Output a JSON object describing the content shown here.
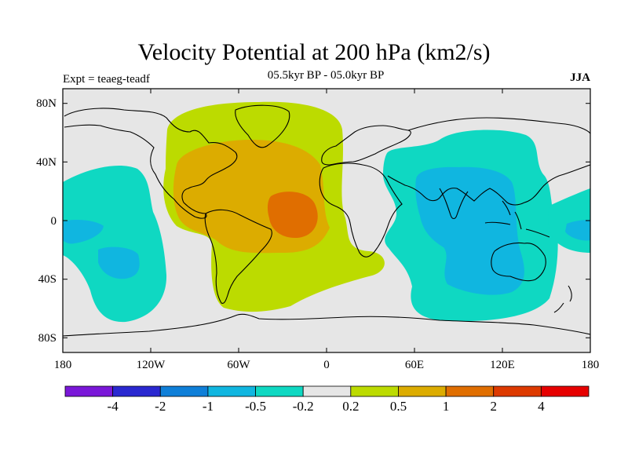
{
  "title": "Velocity Potential at 200 hPa (km2/s)",
  "subtitle": "05.5kyr BP - 05.0kyr BP",
  "experiment": "Expt = teaeg-teadf",
  "season": "JJA",
  "y_ticks": [
    "80N",
    "40N",
    "0",
    "40S",
    "80S"
  ],
  "x_ticks": [
    "180",
    "120W",
    "60W",
    "0",
    "60E",
    "120E",
    "180"
  ],
  "colorbar": {
    "labels": [
      "-4",
      "-2",
      "-1",
      "-0.5",
      "-0.2",
      "0.2",
      "0.5",
      "1",
      "2",
      "4"
    ],
    "colors": [
      "#7a17d8",
      "#2a28d0",
      "#0f7fd8",
      "#10b6e0",
      "#0fd8c2",
      "#e6e6e6",
      "#bcdb00",
      "#dcac00",
      "#e06e00",
      "#dd3a00",
      "#e60000"
    ]
  },
  "chart_data": {
    "type": "contour-map",
    "title": "Velocity Potential at 200 hPa (km2/s)",
    "subtitle": "05.5kyr BP - 05.0kyr BP",
    "season": "JJA",
    "experiment": "Expt = teaeg-teadf",
    "lon_range": [
      -180,
      180
    ],
    "lat_range": [
      -90,
      90
    ],
    "contour_levels": [
      -4,
      -2,
      -1,
      -0.5,
      -0.2,
      0.2,
      0.5,
      1,
      2,
      4
    ],
    "regions": [
      {
        "name": "atlantic-positive",
        "value_range": [
          0.2,
          0.5
        ],
        "level": 6
      },
      {
        "name": "atlantic-americas-core",
        "value_range": [
          0.5,
          1
        ],
        "level": 7
      },
      {
        "name": "tropical-atlantic-max",
        "value_range": [
          1,
          2
        ],
        "level": 8
      },
      {
        "name": "indo-pacific-negative",
        "value_range": [
          -0.5,
          -0.2
        ],
        "level": 4
      },
      {
        "name": "indo-pacific-core",
        "value_range": [
          -1,
          -0.5
        ],
        "level": 3
      },
      {
        "name": "east-pacific-negative",
        "value_range": [
          -0.5,
          -0.2
        ],
        "level": 4
      },
      {
        "name": "east-pacific-core",
        "value_range": [
          -1,
          -0.5
        ],
        "level": 3
      }
    ]
  }
}
